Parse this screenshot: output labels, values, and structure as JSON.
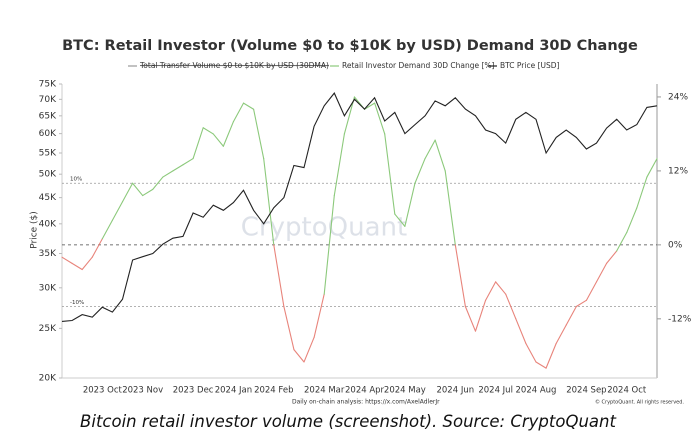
{
  "chart_data": {
    "type": "line",
    "title": "BTC: Retail Investor (Volume $0 to $10K by USD) Demand 30D Change",
    "y_label": "Price ($)",
    "watermark": "CryptoQuant",
    "footer_left": "Daily on-chain analysis: https://x.com/AxelAdlerJr",
    "footer_right": "© CryptoQuant. All rights reserved.",
    "caption": "Bitcoin retail investor volume (screenshot). Source: CryptoQuant",
    "categories": [
      null,
      null,
      null,
      null,
      "2023 Oct",
      null,
      null,
      null,
      "2023 Nov",
      null,
      null,
      null,
      null,
      "2023 Dec",
      null,
      null,
      null,
      "2024 Jan",
      null,
      null,
      null,
      "2024 Feb",
      null,
      null,
      null,
      null,
      "2024 Mar",
      null,
      null,
      null,
      "2024 Apr",
      null,
      null,
      null,
      "2024 May",
      null,
      null,
      null,
      null,
      "2024 Jun",
      null,
      null,
      null,
      "2024 Jul",
      null,
      null,
      null,
      "2024 Aug",
      null,
      null,
      null,
      null,
      "2024 Sep",
      null,
      null,
      null,
      "2024 Oct",
      null,
      null,
      null
    ],
    "ylog": true,
    "ylim": [
      20000,
      75000
    ],
    "yticks": [
      {
        "value": 20000,
        "label": "20K"
      },
      {
        "value": 25000,
        "label": "25K"
      },
      {
        "value": 30000,
        "label": "30K"
      },
      {
        "value": 35000,
        "label": "35K"
      },
      {
        "value": 40000,
        "label": "40K"
      },
      {
        "value": 45000,
        "label": "45K"
      },
      {
        "value": 50000,
        "label": "50K"
      },
      {
        "value": 55000,
        "label": "55K"
      },
      {
        "value": 60000,
        "label": "60K"
      },
      {
        "value": 65000,
        "label": "65K"
      },
      {
        "value": 70000,
        "label": "70K"
      },
      {
        "value": 75000,
        "label": "75K"
      }
    ],
    "y2lim": [
      -21.6,
      26.1
    ],
    "y2ticks": [
      {
        "value": -12,
        "label": "-12%"
      },
      {
        "value": 0,
        "label": "0%"
      },
      {
        "value": 12,
        "label": "12%"
      },
      {
        "value": 24,
        "label": "24%"
      }
    ],
    "zero_line": true,
    "ref_lines": [
      {
        "value": 10,
        "label": "10%"
      },
      {
        "value": -10,
        "label": "-10%"
      }
    ],
    "series": [
      {
        "name": "Total Transfer Volume $0 to $10K by USD (30DMA)",
        "color": "#999999",
        "hidden": true
      },
      {
        "name": "Retail Investor Demand 30D Change [%]",
        "color": "#8cc97b",
        "negative_color": "#e8847b",
        "axis": "y2",
        "values": [
          -2,
          -3,
          -4,
          -2,
          1,
          4,
          7,
          10,
          8,
          9,
          11,
          12,
          13,
          14,
          19,
          18,
          16,
          20,
          23,
          22,
          14,
          0,
          -10,
          -17,
          -19,
          -15,
          -8,
          8,
          18,
          24,
          22,
          23,
          18,
          5,
          3,
          10,
          14,
          17,
          12,
          0,
          -10,
          -14,
          -9,
          -6,
          -8,
          -12,
          -16,
          -19,
          -20,
          -16,
          -13,
          -10,
          -9,
          -6,
          -3,
          -1,
          2,
          6,
          11,
          14
        ]
      },
      {
        "name": "BTC Price [USD]",
        "color": "#222222",
        "values": [
          25800,
          25900,
          26600,
          26300,
          27500,
          26900,
          28500,
          34000,
          34500,
          35000,
          36500,
          37500,
          37800,
          42000,
          41200,
          43500,
          42500,
          44000,
          46500,
          42500,
          40000,
          43000,
          45000,
          52000,
          51500,
          62000,
          68000,
          72000,
          65000,
          70000,
          67000,
          70500,
          63500,
          66000,
          60000,
          62500,
          65000,
          69500,
          68000,
          70500,
          67000,
          65000,
          61000,
          60000,
          57500,
          64000,
          66000,
          64000,
          55000,
          59000,
          61000,
          59000,
          56000,
          57500,
          61500,
          64000,
          61000,
          62500,
          67500,
          68000
        ]
      }
    ]
  }
}
